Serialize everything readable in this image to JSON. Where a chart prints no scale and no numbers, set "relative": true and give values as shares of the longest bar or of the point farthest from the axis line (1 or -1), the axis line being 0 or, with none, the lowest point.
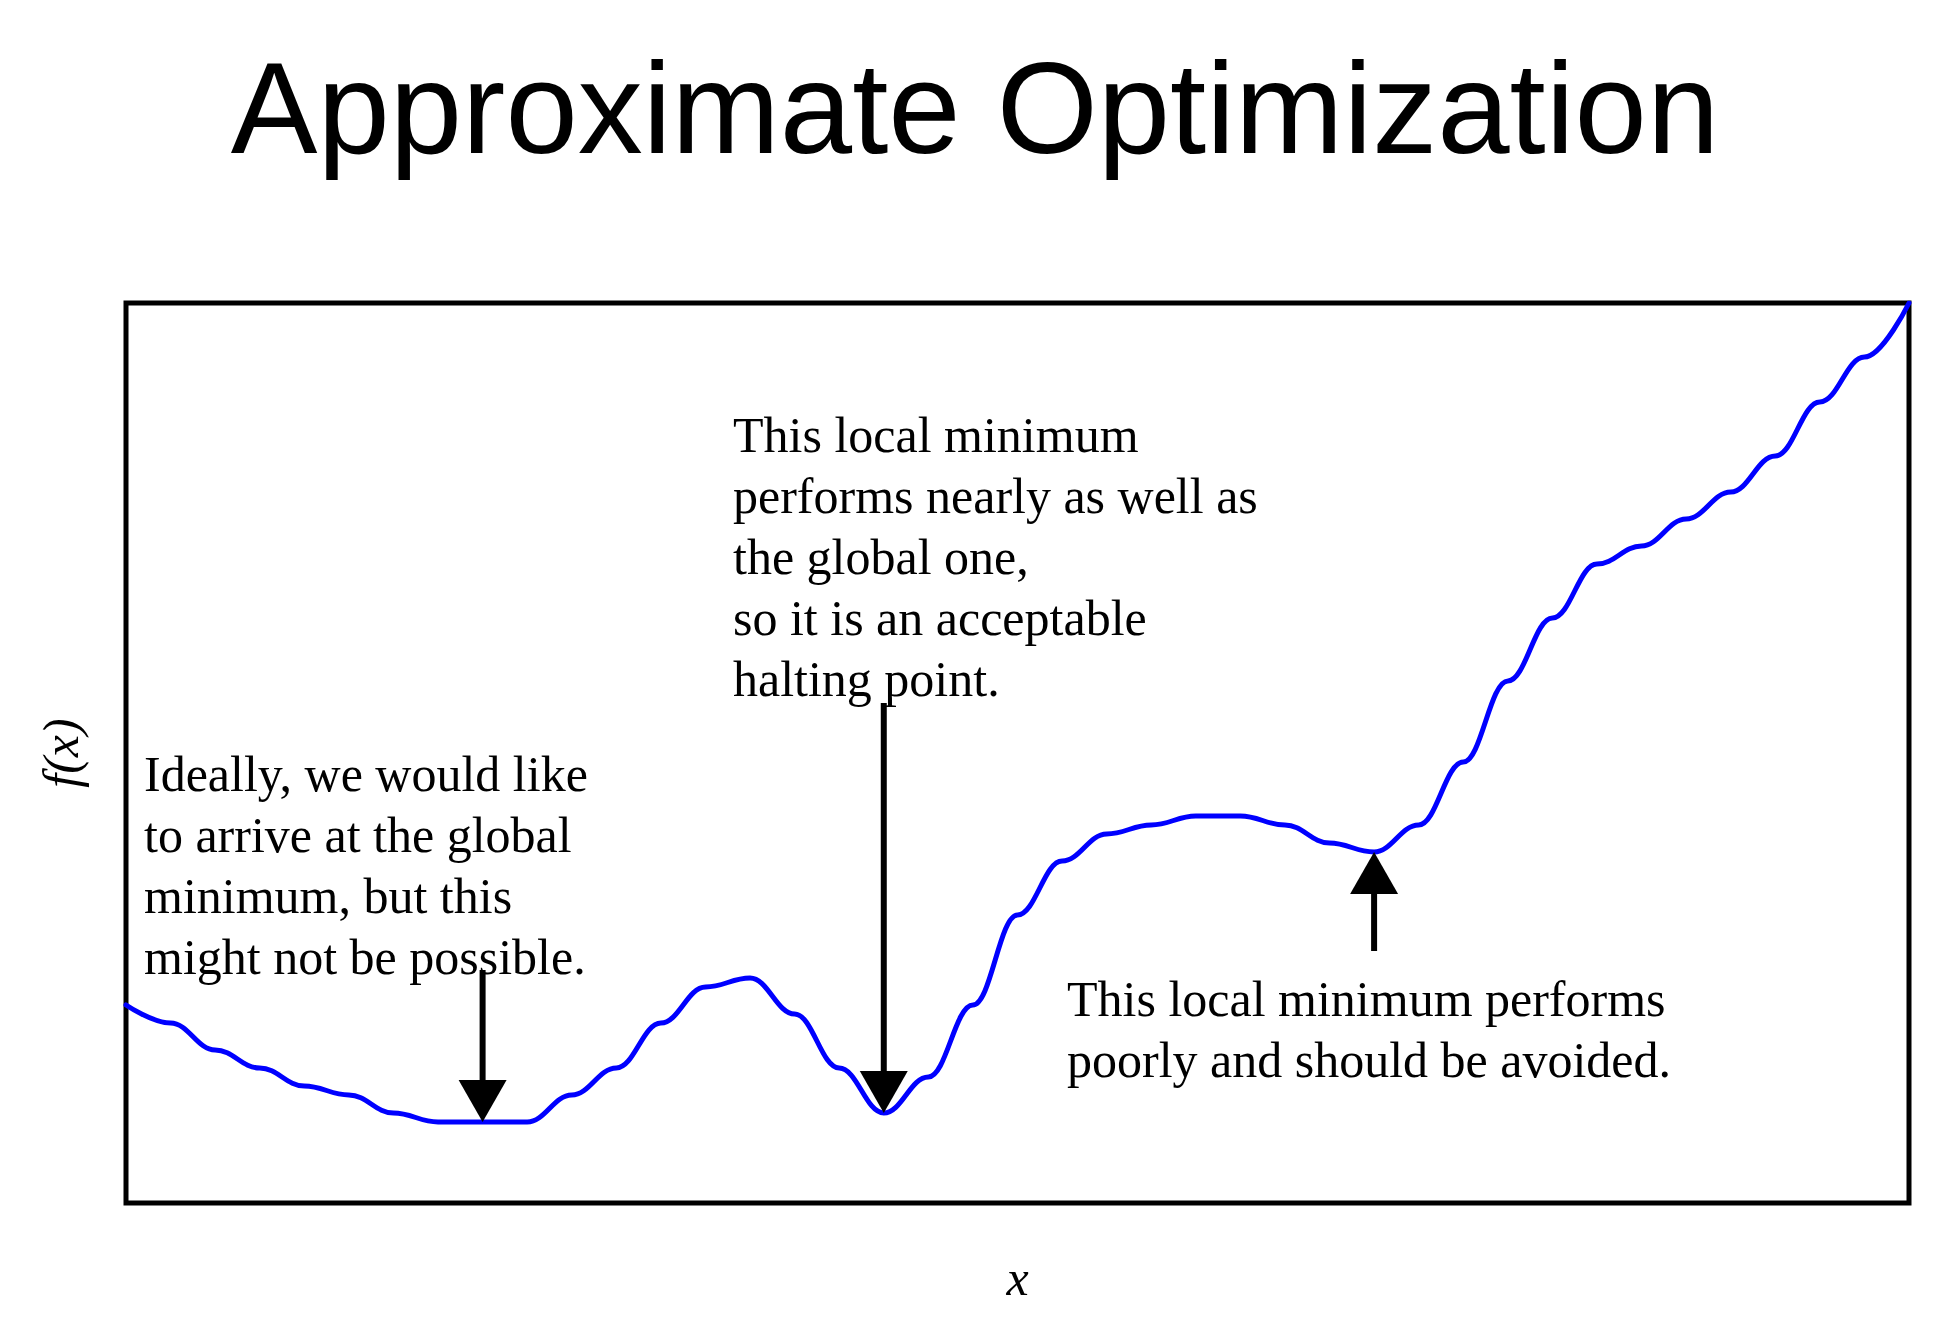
{
  "chart_data": {
    "type": "line",
    "title": "Approximate Optimization",
    "xlabel": "x",
    "ylabel": "f(x)",
    "relative": true,
    "marker": "none",
    "color": "#0000ff",
    "categories": [
      null,
      null,
      null,
      null,
      null,
      null,
      null,
      null,
      null,
      null,
      null,
      null,
      null,
      null,
      null,
      null,
      null,
      null,
      null,
      null,
      null,
      null,
      null,
      null,
      null,
      null,
      null,
      null,
      null,
      null,
      null,
      null,
      null,
      null,
      null,
      null,
      null,
      null,
      null,
      null,
      null
    ],
    "values": [
      0.22,
      0.2,
      0.17,
      0.15,
      0.13,
      0.12,
      0.1,
      0.09,
      0.09,
      0.09,
      0.12,
      0.15,
      0.2,
      0.24,
      0.25,
      0.21,
      0.15,
      0.1,
      0.14,
      0.22,
      0.32,
      0.38,
      0.41,
      0.42,
      0.43,
      0.43,
      0.42,
      0.4,
      0.39,
      0.42,
      0.49,
      0.58,
      0.65,
      0.71,
      0.73,
      0.76,
      0.79,
      0.83,
      0.89,
      0.94,
      1
    ],
    "annotations": [
      "Ideally, we would like\nto arrive at the global\nminimum, but this\nmight not be possible.",
      "This local minimum\nperforms nearly as well as\nthe global one,\nso it is an acceptable\nhalting point.",
      "This local minimum performs\npoorly and should be avoided."
    ]
  }
}
